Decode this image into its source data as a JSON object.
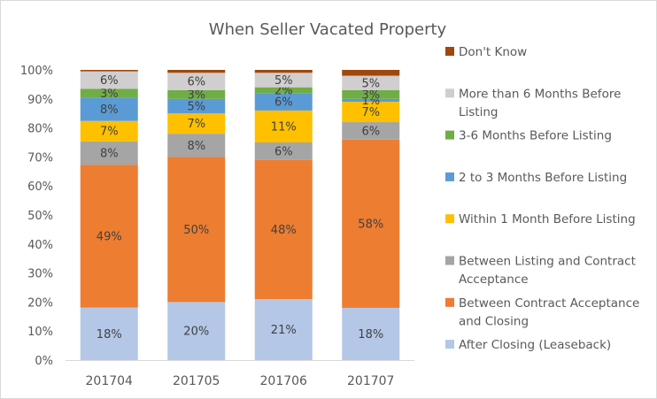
{
  "chart_data": {
    "type": "bar",
    "stacked": true,
    "percent_stacked": true,
    "title": "When Seller Vacated Property",
    "xlabel": "",
    "ylabel": "",
    "ylim": [
      0,
      100
    ],
    "y_ticks": [
      "0%",
      "10%",
      "20%",
      "30%",
      "40%",
      "50%",
      "60%",
      "70%",
      "80%",
      "90%",
      "100%"
    ],
    "categories": [
      "201704",
      "201705",
      "201706",
      "201707"
    ],
    "grid": false,
    "legend_position": "right",
    "series": [
      {
        "name": "After Closing (Leaseback)",
        "color": "#b4c7e7",
        "values": [
          18,
          20,
          21,
          18
        ],
        "labels": [
          "18%",
          "20%",
          "21%",
          "18%"
        ]
      },
      {
        "name": "Between Contract Acceptance and Closing",
        "color": "#ed7d31",
        "values": [
          49,
          50,
          48,
          58
        ],
        "labels": [
          "49%",
          "50%",
          "48%",
          "58%"
        ]
      },
      {
        "name": "Between Listing and Contract Acceptance",
        "color": "#a5a5a5",
        "values": [
          8,
          8,
          6,
          6
        ],
        "labels": [
          "8%",
          "8%",
          "6%",
          "6%"
        ]
      },
      {
        "name": "Within 1 Month Before Listing",
        "color": "#ffc000",
        "values": [
          7,
          7,
          11,
          7
        ],
        "labels": [
          "7%",
          "7%",
          "11%",
          "7%"
        ]
      },
      {
        "name": "2 to 3 Months Before Listing",
        "color": "#5b9bd5",
        "values": [
          8,
          5,
          6,
          1
        ],
        "labels": [
          "8%",
          "5%",
          "6%",
          "1%"
        ]
      },
      {
        "name": "3-6 Months Before Listing",
        "color": "#70ad47",
        "values": [
          3,
          3,
          2,
          3
        ],
        "labels": [
          "3%",
          "3%",
          "2%",
          "3%"
        ]
      },
      {
        "name": "More than 6 Months Before Listing",
        "color": "#d0cece",
        "values": [
          6,
          6,
          5,
          5
        ],
        "labels": [
          "6%",
          "6%",
          "5%",
          "5%"
        ]
      },
      {
        "name": "Don't Know",
        "color": "#9e480e",
        "values": [
          0.5,
          1,
          1,
          2
        ],
        "labels": [
          "",
          "",
          "",
          ""
        ]
      }
    ],
    "legend": [
      {
        "lines": [
          "Don't Know"
        ],
        "color": "#9e480e"
      },
      {
        "lines": [
          "More than 6 Months Before",
          "Listing"
        ],
        "color": "#d0cece"
      },
      {
        "lines": [
          "3-6 Months Before Listing"
        ],
        "color": "#70ad47"
      },
      {
        "lines": [
          "2 to 3 Months Before Listing"
        ],
        "color": "#5b9bd5"
      },
      {
        "lines": [
          "Within 1 Month Before Listing"
        ],
        "color": "#ffc000"
      },
      {
        "lines": [
          "Between Listing and Contract",
          "Acceptance"
        ],
        "color": "#a5a5a5"
      },
      {
        "lines": [
          "Between Contract Acceptance",
          "and Closing"
        ],
        "color": "#ed7d31"
      },
      {
        "lines": [
          "After Closing (Leaseback)"
        ],
        "color": "#b4c7e7"
      }
    ]
  }
}
